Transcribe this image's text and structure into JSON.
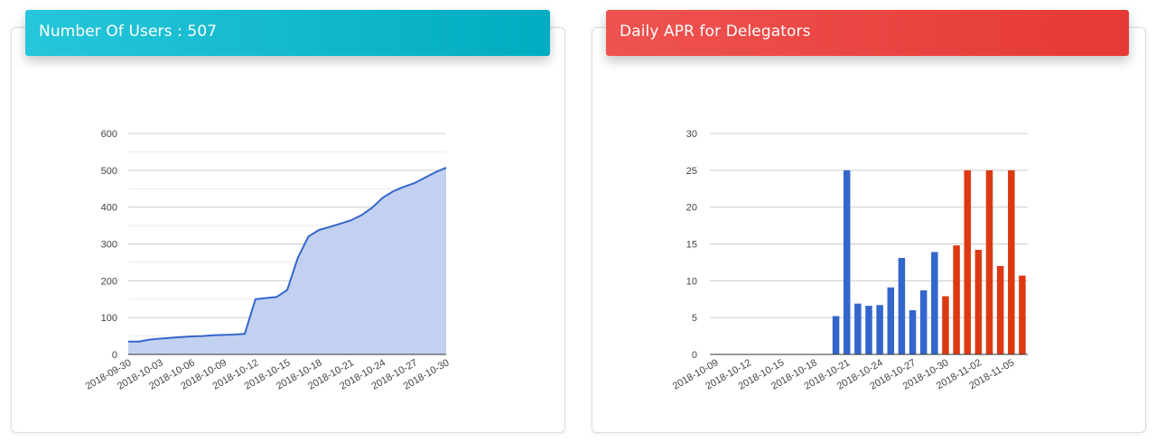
{
  "cards": {
    "users": {
      "title": "Number Of Users : 507",
      "header_color": "#00acc1"
    },
    "apr": {
      "title": "Daily APR for Delegators",
      "header_color": "#e53935"
    }
  },
  "chart_data": [
    {
      "type": "area",
      "title": "",
      "xlabel": "",
      "ylabel": "",
      "ylim": [
        0,
        600
      ],
      "yticks": [
        "0",
        "100",
        "200",
        "300",
        "400",
        "500",
        "600"
      ],
      "grid": true,
      "line_color": "#3366cc",
      "fill_color": "#c2d1f0",
      "x_tick_labels": [
        "2018-09-30",
        "2018-10-03",
        "2018-10-06",
        "2018-10-09",
        "2018-10-12",
        "2018-10-15",
        "2018-10-18",
        "2018-10-21",
        "2018-10-24",
        "2018-10-27",
        "2018-10-30"
      ],
      "x": [
        "2018-09-30",
        "2018-10-01",
        "2018-10-02",
        "2018-10-03",
        "2018-10-04",
        "2018-10-05",
        "2018-10-06",
        "2018-10-07",
        "2018-10-08",
        "2018-10-09",
        "2018-10-10",
        "2018-10-11",
        "2018-10-12",
        "2018-10-13",
        "2018-10-14",
        "2018-10-15",
        "2018-10-16",
        "2018-10-17",
        "2018-10-18",
        "2018-10-19",
        "2018-10-20",
        "2018-10-21",
        "2018-10-22",
        "2018-10-23",
        "2018-10-24",
        "2018-10-25",
        "2018-10-26",
        "2018-10-27",
        "2018-10-28",
        "2018-10-29",
        "2018-10-30"
      ],
      "values": [
        35,
        35,
        40,
        43,
        45,
        47,
        49,
        50,
        52,
        53,
        54,
        56,
        150,
        153,
        156,
        175,
        262,
        320,
        338,
        346,
        355,
        364,
        378,
        398,
        425,
        443,
        455,
        465,
        480,
        495,
        507
      ]
    },
    {
      "type": "bar",
      "title": "",
      "xlabel": "",
      "ylabel": "",
      "ylim": [
        0,
        30
      ],
      "yticks": [
        "0",
        "5",
        "10",
        "15",
        "20",
        "25",
        "30"
      ],
      "grid": true,
      "x_tick_labels": [
        "2018-10-09",
        "2018-10-12",
        "2018-10-15",
        "2018-10-18",
        "2018-10-21",
        "2018-10-24",
        "2018-10-27",
        "2018-10-30",
        "2018-11-02",
        "2018-11-05"
      ],
      "x": [
        "2018-10-09",
        "2018-10-10",
        "2018-10-11",
        "2018-10-12",
        "2018-10-13",
        "2018-10-14",
        "2018-10-15",
        "2018-10-16",
        "2018-10-17",
        "2018-10-18",
        "2018-10-19",
        "2018-10-20",
        "2018-10-21",
        "2018-10-22",
        "2018-10-23",
        "2018-10-24",
        "2018-10-25",
        "2018-10-26",
        "2018-10-27",
        "2018-10-28",
        "2018-10-29",
        "2018-10-30",
        "2018-10-31",
        "2018-11-01",
        "2018-11-02",
        "2018-11-03",
        "2018-11-04",
        "2018-11-05",
        "2018-11-06"
      ],
      "series": [
        {
          "color": "#3366cc",
          "values": [
            0,
            0,
            0,
            0,
            0,
            0,
            0,
            0,
            0,
            0,
            0,
            5.2,
            25,
            6.9,
            6.6,
            6.7,
            9.1,
            13.1,
            6.0,
            8.7,
            13.9,
            null,
            null,
            null,
            null,
            null,
            null,
            null,
            null
          ]
        },
        {
          "color": "#dc3912",
          "values": [
            null,
            null,
            null,
            null,
            null,
            null,
            null,
            null,
            null,
            null,
            null,
            null,
            null,
            null,
            null,
            null,
            null,
            null,
            null,
            null,
            null,
            7.9,
            14.8,
            25,
            14.2,
            25,
            12.0,
            25,
            10.7
          ]
        }
      ]
    }
  ]
}
